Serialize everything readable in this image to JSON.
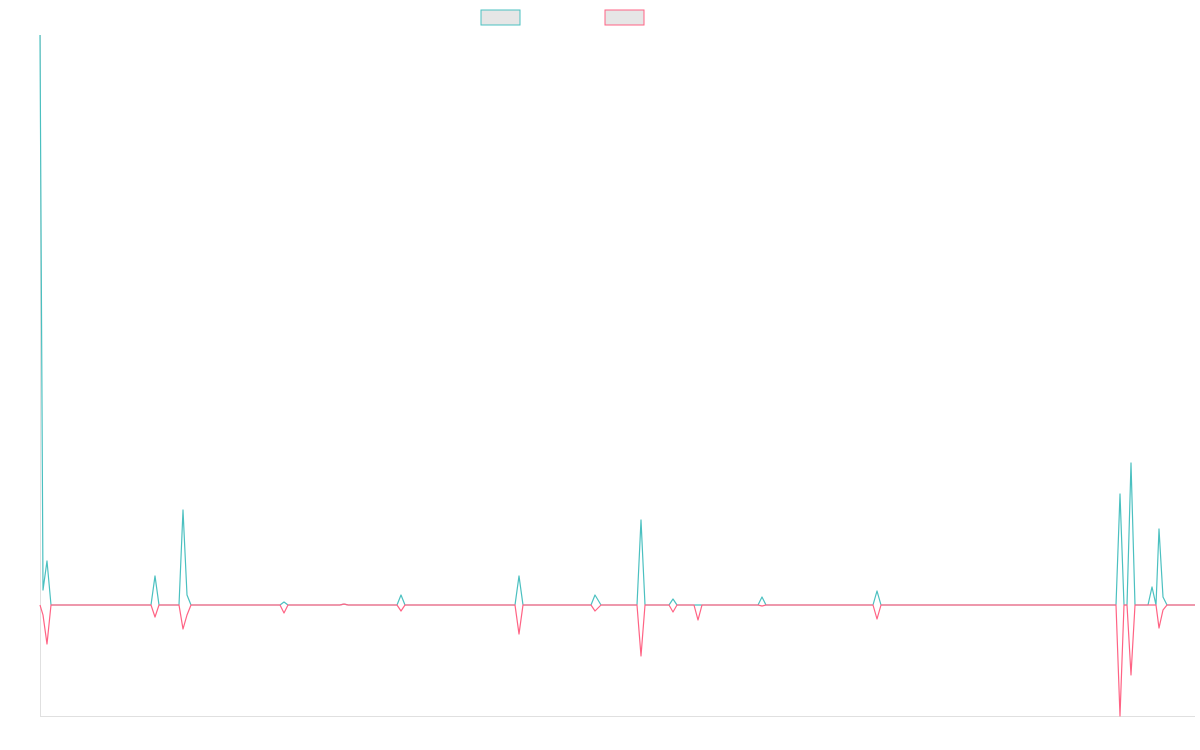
{
  "chart_data": {
    "type": "line",
    "x": [
      0,
      3,
      7,
      11,
      111,
      115,
      119,
      139,
      143,
      147,
      151,
      240,
      244,
      248,
      300,
      304,
      308,
      357,
      361,
      365,
      475,
      479,
      483,
      551,
      555,
      561,
      597,
      601,
      605,
      629,
      633,
      637,
      654,
      658,
      662,
      718,
      722,
      726,
      833,
      837,
      841,
      1076,
      1080,
      1084,
      1087,
      1091,
      1095,
      1108,
      1112,
      1116,
      1119,
      1123,
      1127,
      1155
    ],
    "xlim": [
      0,
      1155
    ],
    "ylim": [
      -111,
      570
    ],
    "series": [
      {
        "color": "#4bc0c0",
        "values": [
          570,
          15,
          44,
          0,
          0,
          29,
          0,
          0,
          95,
          10,
          0,
          0,
          3,
          0,
          0,
          1,
          0,
          0,
          10,
          0,
          0,
          29,
          0,
          0,
          10,
          0,
          0,
          85,
          0,
          0,
          6,
          0,
          0,
          0,
          0,
          0,
          8,
          0,
          0,
          14,
          0,
          0,
          111,
          0,
          0,
          142,
          0,
          0,
          18,
          0,
          76,
          8,
          0,
          0
        ]
      },
      {
        "color": "#ff6384",
        "values": [
          0,
          -10,
          -39,
          0,
          0,
          -12,
          0,
          0,
          -24,
          -10,
          0,
          0,
          -8,
          0,
          0,
          1,
          0,
          0,
          -6,
          0,
          0,
          -29,
          0,
          0,
          -6,
          0,
          0,
          -51,
          0,
          0,
          -7,
          0,
          0,
          -15,
          0,
          0,
          -1,
          0,
          0,
          -14,
          0,
          0,
          -111,
          0,
          0,
          -70,
          0,
          0,
          0,
          0,
          -23,
          -5,
          0,
          0
        ]
      }
    ]
  }
}
